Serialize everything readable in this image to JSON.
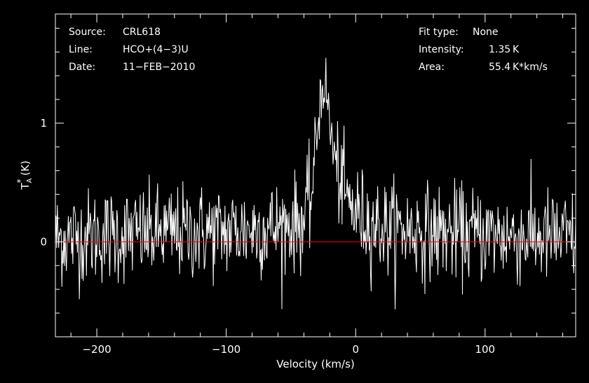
{
  "header": {
    "left": [
      {
        "label": "Source:",
        "value": "CRL618"
      },
      {
        "label": "Line:",
        "value": "HCO+(4−3)U"
      },
      {
        "label": "Date:",
        "value": "11−FEB−2010"
      }
    ],
    "right": [
      {
        "label": "Fit type:",
        "value": "None"
      },
      {
        "label": "Intensity:",
        "value": "1.35 K"
      },
      {
        "label": "Area:",
        "value": "55.4 K*km/s"
      }
    ]
  },
  "chart_data": {
    "type": "line",
    "xlabel": "Velocity (km/s)",
    "ylabel": "T_A^* (K)",
    "ylabel_parts": {
      "main": "T",
      "sub": "A",
      "sup": "*",
      "unit": " (K)"
    },
    "xlim": [
      -232,
      170
    ],
    "ylim": [
      -0.8,
      1.92
    ],
    "xticks": [
      {
        "value": -200,
        "label": "−200"
      },
      {
        "value": -100,
        "label": "−100"
      },
      {
        "value": 0,
        "label": "0"
      },
      {
        "value": 100,
        "label": "100"
      }
    ],
    "yticks": [
      {
        "value": 0,
        "label": "0"
      },
      {
        "value": 1,
        "label": "1"
      }
    ],
    "baseline": {
      "value": 0,
      "color": "#ff0000"
    },
    "series": [
      {
        "color": "#ffffff",
        "noise_sigma": 0.2,
        "channel_width": 0.5,
        "profile": [
          {
            "x": -232,
            "y": 0.03
          },
          {
            "x": -200,
            "y": 0.05
          },
          {
            "x": -150,
            "y": 0.07
          },
          {
            "x": -100,
            "y": 0.09
          },
          {
            "x": -60,
            "y": 0.12
          },
          {
            "x": -40,
            "y": 0.18
          },
          {
            "x": -34,
            "y": 0.4
          },
          {
            "x": -30,
            "y": 0.9
          },
          {
            "x": -27,
            "y": 1.25
          },
          {
            "x": -25,
            "y": 1.35
          },
          {
            "x": -23,
            "y": 1.28
          },
          {
            "x": -20,
            "y": 1.0
          },
          {
            "x": -17,
            "y": 0.75
          },
          {
            "x": -14,
            "y": 0.6
          },
          {
            "x": -10,
            "y": 0.45
          },
          {
            "x": -5,
            "y": 0.32
          },
          {
            "x": 5,
            "y": 0.2
          },
          {
            "x": 20,
            "y": 0.12
          },
          {
            "x": 60,
            "y": 0.08
          },
          {
            "x": 120,
            "y": 0.05
          },
          {
            "x": 170,
            "y": 0.03
          }
        ]
      }
    ]
  },
  "colors": {
    "background": "#000000",
    "frame": "#ffffff",
    "spectrum": "#ffffff",
    "baseline": "#ff0000"
  }
}
